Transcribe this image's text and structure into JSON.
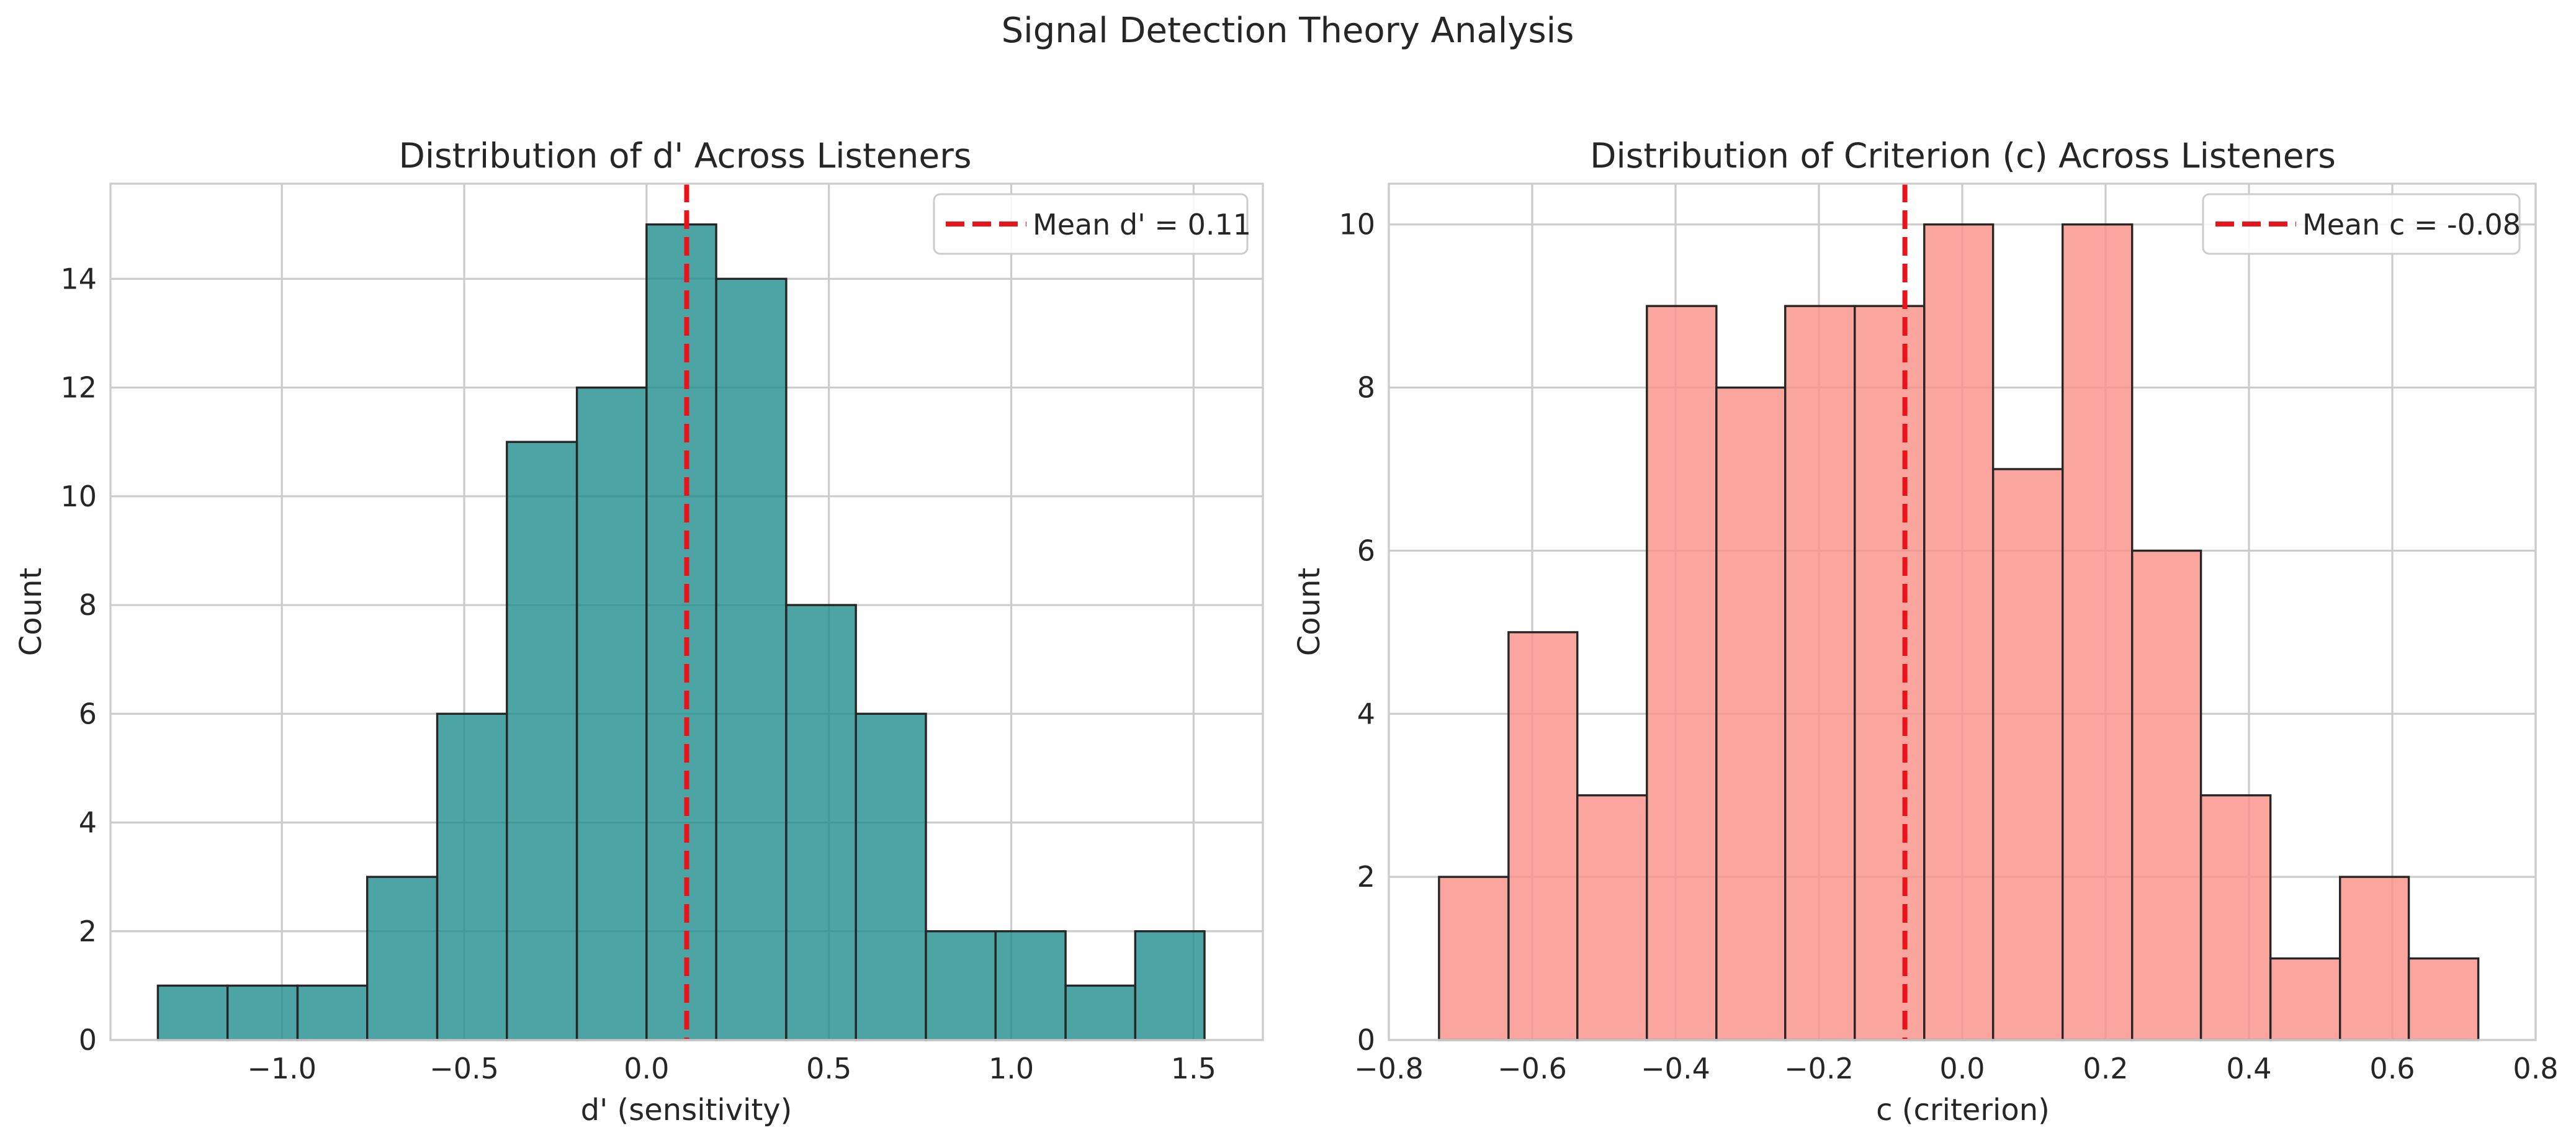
{
  "figure": {
    "suptitle": "Signal Detection Theory Analysis"
  },
  "chart_data": [
    {
      "type": "bar",
      "title": "Distribution of d' Across Listeners",
      "xlabel": "d' (sensitivity)",
      "ylabel": "Count",
      "xlim": [
        -1.47,
        1.69
      ],
      "ylim": [
        0,
        15.75
      ],
      "xticks": [
        -1.0,
        -0.5,
        0.0,
        0.5,
        1.0,
        1.5
      ],
      "xtick_labels": [
        "−1.0",
        "−0.5",
        "0.0",
        "0.5",
        "1.0",
        "1.5"
      ],
      "yticks": [
        0,
        2,
        4,
        6,
        8,
        10,
        12,
        14
      ],
      "ytick_labels": [
        "0",
        "2",
        "4",
        "6",
        "8",
        "10",
        "12",
        "14"
      ],
      "bin_edges": [
        -1.34,
        -1.149,
        -0.957,
        -0.766,
        -0.574,
        -0.383,
        -0.191,
        0.0,
        0.191,
        0.383,
        0.574,
        0.766,
        0.957,
        1.149,
        1.34,
        1.53
      ],
      "counts": [
        1,
        1,
        1,
        3,
        6,
        11,
        12,
        15,
        14,
        8,
        6,
        2,
        2,
        1,
        2
      ],
      "bar_color": "#198c8a",
      "bar_alpha": 0.78,
      "mean_line": {
        "value": 0.11,
        "color": "#e8141a",
        "label": "Mean d' = 0.11"
      },
      "legend_position": "upper right",
      "grid": true
    },
    {
      "type": "bar",
      "title": "Distribution of Criterion (c) Across Listeners",
      "xlabel": "c (criterion)",
      "ylabel": "Count",
      "xlim": [
        -0.8,
        0.8
      ],
      "ylim": [
        0,
        10.5
      ],
      "xticks": [
        -0.8,
        -0.6,
        -0.4,
        -0.2,
        0.0,
        0.2,
        0.4,
        0.6,
        0.8
      ],
      "xtick_labels": [
        "−0.8",
        "−0.6",
        "−0.4",
        "−0.2",
        "0.0",
        "0.2",
        "0.4",
        "0.6",
        "0.8"
      ],
      "yticks": [
        0,
        2,
        4,
        6,
        8,
        10
      ],
      "ytick_labels": [
        "0",
        "2",
        "4",
        "6",
        "8",
        "10"
      ],
      "bin_edges": [
        -0.73,
        -0.633,
        -0.537,
        -0.44,
        -0.343,
        -0.247,
        -0.15,
        -0.053,
        0.043,
        0.14,
        0.237,
        0.333,
        0.43,
        0.527,
        0.623,
        0.72
      ],
      "counts": [
        2,
        5,
        3,
        9,
        8,
        9,
        9,
        10,
        7,
        10,
        6,
        3,
        1,
        2,
        1
      ],
      "bar_color": "#f9938a",
      "bar_alpha": 0.82,
      "mean_line": {
        "value": -0.08,
        "color": "#e8141a",
        "label": "Mean c = -0.08"
      },
      "legend_position": "upper right",
      "grid": true
    }
  ]
}
